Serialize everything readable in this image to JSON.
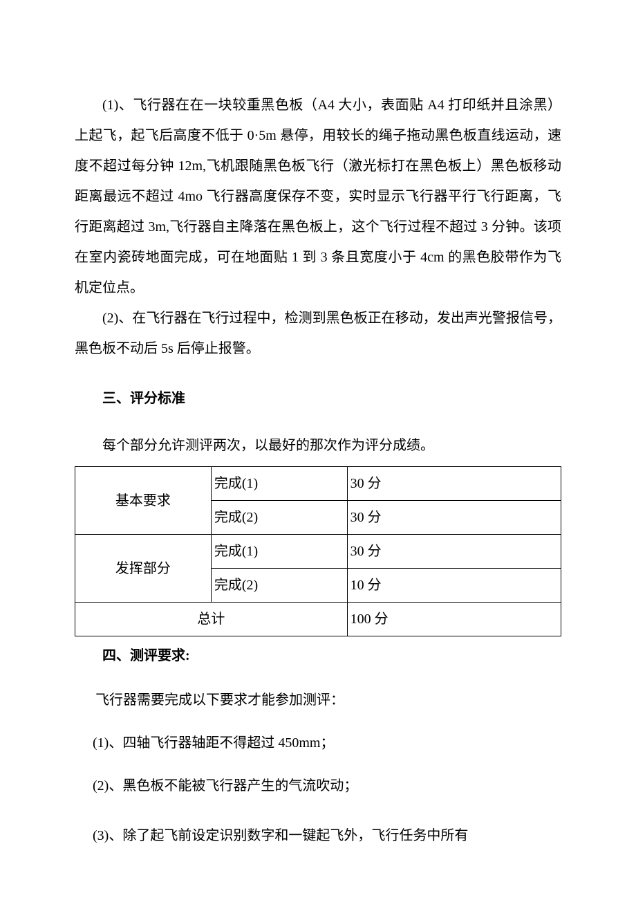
{
  "paragraphs": {
    "p1": "(1)、飞行器在在一块较重黑色板（A4 大小，表面贴 A4 打印纸并且涂黑）上起飞，起飞后高度不低于 0·5m 悬停，用较长的绳子拖动黑色板直线运动，速度不超过每分钟 12m,飞机跟随黑色板飞行（激光标打在黑色板上）黑色板移动距离最远不超过 4mo 飞行器高度保存不变，实时显示飞行器平行飞行距离，飞行距离超过 3m,飞行器自主降落在黑色板上，这个飞行过程不超过 3 分钟。该项在室内瓷砖地面完成，可在地面贴 1 到 3 条且宽度小于 4cm 的黑色胶带作为飞机定位点。",
    "p2": "(2)、在飞行器在飞行过程中，检测到黑色板正在移动，发出声光警报信号，黑色板不动后 5s 后停止报警。"
  },
  "section3": {
    "heading": "三、评分标准",
    "intro": "每个部分允许测评两次，以最好的那次作为评分成绩。",
    "table": {
      "rows": [
        {
          "category": "基本要求",
          "item": "完成(1)",
          "score": "30 分"
        },
        {
          "category": "",
          "item": "完成(2)",
          "score": "30 分"
        },
        {
          "category": "发挥部分",
          "item": "完成(1)",
          "score": "30 分"
        },
        {
          "category": "",
          "item": "完成(2)",
          "score": "10 分"
        }
      ],
      "total_label": "总计",
      "total_score": "100 分"
    }
  },
  "section4": {
    "heading": "四、测评要求:",
    "intro": "飞行器需要完成以下要求才能参加测评：",
    "items": [
      "(1)、四轴飞行器轴距不得超过 450mm；",
      "(2)、黑色板不能被飞行器产生的气流吹动；",
      "(3)、除了起飞前设定识别数字和一键起飞外，飞行任务中所有"
    ]
  }
}
